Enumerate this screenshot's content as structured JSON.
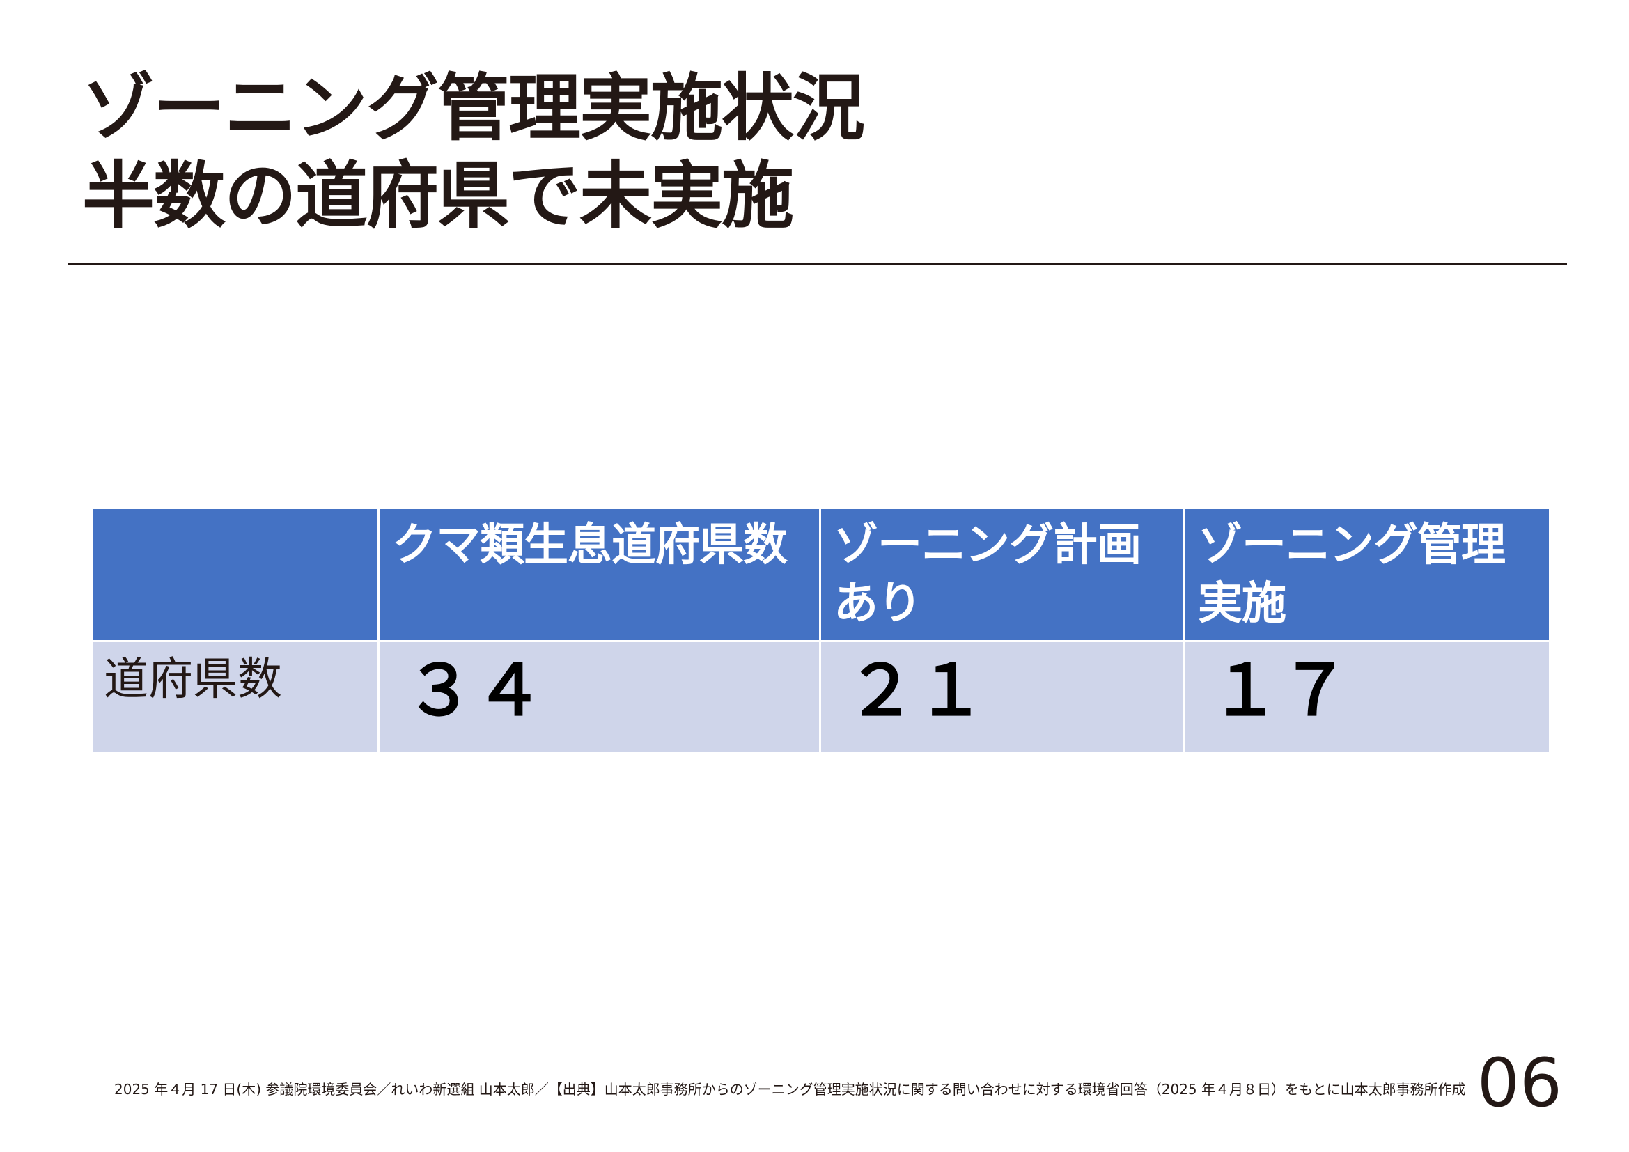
{
  "title": {
    "line1": "ゾーニング管理実施状況",
    "line2": "半数の道府県で未実施"
  },
  "table": {
    "headers": [
      "",
      "クマ類生息道府県数",
      "ゾーニング計画あり",
      "ゾーニング管理実施"
    ],
    "rows": [
      {
        "label": "道府県数",
        "values": [
          "３４",
          "２１",
          "１７"
        ]
      }
    ]
  },
  "footer": {
    "text": "2025 年４月 17 日(木) 参議院環境委員会／れいわ新選組 山本太郎／【出典】山本太郎事務所からのゾーニング管理実施状況に関する問い合わせに対する環境省回答（2025 年４月８日）をもとに山本太郎事務所作成"
  },
  "page_number": "06"
}
